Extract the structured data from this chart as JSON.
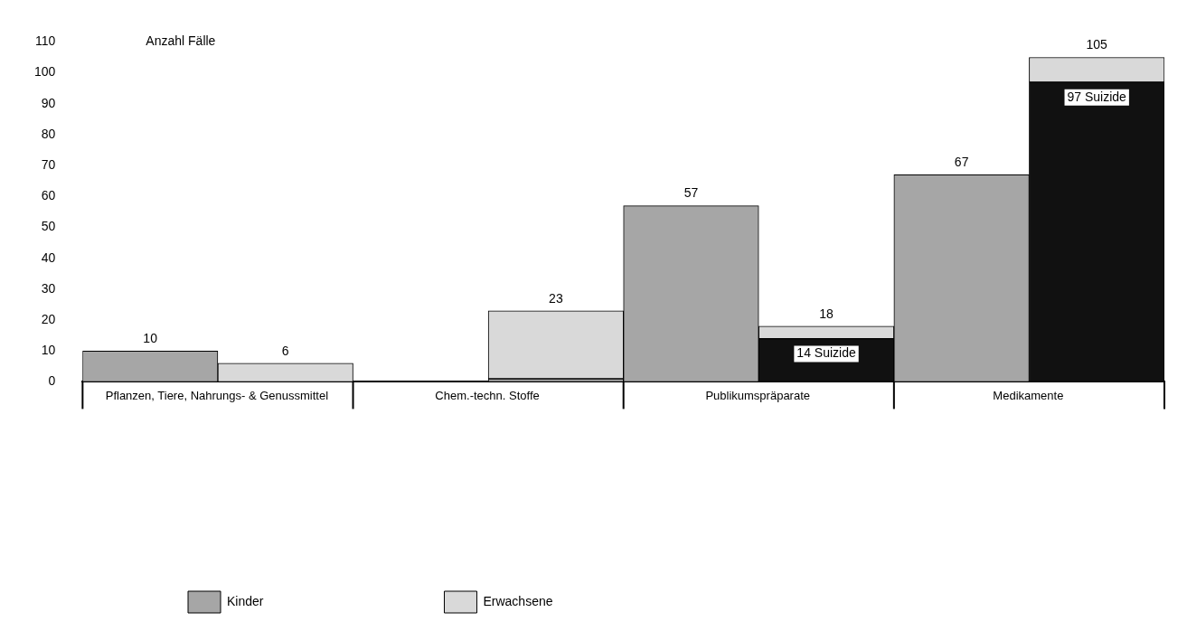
{
  "chart_data": {
    "type": "bar",
    "ylabel": "Anzahl Fälle",
    "categories": [
      "Pflanzen, Tiere, Nahrungs- & Genussmittel",
      null,
      "Chem.-techn. Stoffe",
      null,
      "Publikumspräparate",
      null,
      "Medikamente",
      null
    ],
    "ylim": [
      0,
      110
    ],
    "yticks": [
      0,
      10,
      20,
      30,
      40,
      50,
      60,
      70,
      80,
      90,
      100,
      110
    ],
    "grid": false,
    "legend": "bottom left",
    "stacked": true,
    "series": [
      {
        "name": "Kinder",
        "color": "#a6a6a6",
        "values": [
          10,
          null,
          null,
          null,
          57,
          null,
          67,
          null
        ]
      },
      {
        "color": "#a6a6a6",
        "values": [
          null,
          null,
          null,
          1,
          null,
          null,
          null,
          null
        ]
      },
      {
        "color": "#111111",
        "values": [
          null,
          null,
          null,
          null,
          null,
          14,
          null,
          97
        ],
        "value_labels": [
          null,
          null,
          null,
          null,
          null,
          "14 Suizide",
          null,
          "97 Suizide"
        ]
      },
      {
        "name": "Erwachsene",
        "color": "#d9d9d9",
        "values": [
          null,
          6,
          null,
          22,
          null,
          4,
          null,
          8
        ]
      }
    ],
    "totals": [
      "10",
      "6",
      null,
      "23",
      "57",
      "18",
      "67",
      "105"
    ]
  }
}
